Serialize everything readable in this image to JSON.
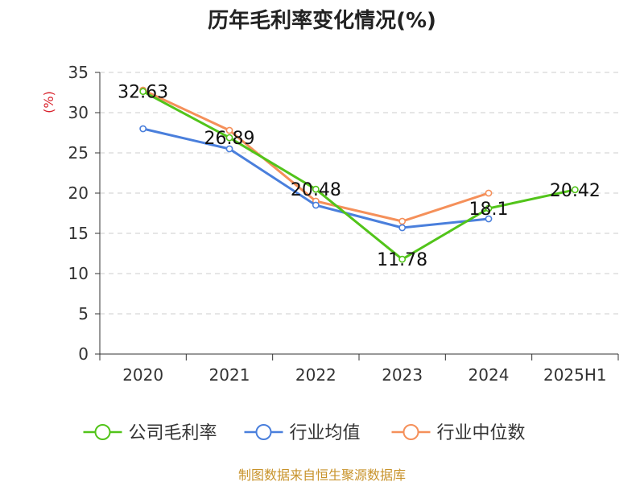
{
  "chart_data": {
    "type": "line",
    "title": "历年毛利率变化情况(%)",
    "ylabel": "(%)",
    "xlabel": "",
    "categories": [
      "2020",
      "2021",
      "2022",
      "2023",
      "2024",
      "2025H1"
    ],
    "ylim": [
      0,
      35
    ],
    "yticks": [
      0,
      5,
      10,
      15,
      20,
      25,
      30,
      35
    ],
    "grid": true,
    "legend_position": "bottom",
    "series": [
      {
        "name": "公司毛利率",
        "color": "#52c41a",
        "values": [
          32.63,
          26.89,
          20.48,
          11.78,
          18.1,
          20.42
        ],
        "data_labels": [
          "32.63",
          "26.89",
          "20.48",
          "11.78",
          "18.1",
          "20.42"
        ]
      },
      {
        "name": "行业均值",
        "color": "#4a7fdc",
        "values": [
          28.0,
          25.5,
          18.5,
          15.7,
          16.8,
          null
        ]
      },
      {
        "name": "行业中位数",
        "color": "#f5905a",
        "values": [
          32.8,
          27.8,
          19.0,
          16.5,
          20.0,
          null
        ]
      }
    ]
  },
  "footer": {
    "source": "制图数据来自恒生聚源数据库"
  },
  "colors": {
    "title": "#222222",
    "ylabel": "#d9232d",
    "axis": "#333333",
    "grid": "#cccccc",
    "footer": "#c8932b"
  }
}
